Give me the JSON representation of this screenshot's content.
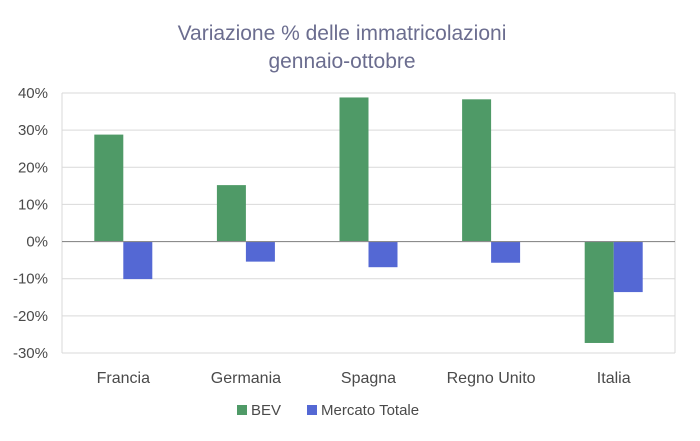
{
  "chart_data": {
    "type": "bar",
    "title": "Variazione % delle immatricolazioni",
    "subtitle": "gennaio-ottobre",
    "categories": [
      "Francia",
      "Germania",
      "Spagna",
      "Regno Unito",
      "Italia"
    ],
    "series": [
      {
        "name": "BEV",
        "color": "#4f9a67",
        "values": [
          28.8,
          15.2,
          38.8,
          38.3,
          -27.3
        ]
      },
      {
        "name": "Mercato Totale",
        "color": "#5468d4",
        "values": [
          -10.1,
          -5.4,
          -6.9,
          -5.7,
          -13.6
        ]
      }
    ],
    "ylim": [
      -30,
      40
    ],
    "yticks": [
      40,
      30,
      20,
      10,
      0,
      -10,
      -20,
      -30
    ],
    "ytick_labels": [
      "40%",
      "30%",
      "20%",
      "10%",
      "0%",
      "-10%",
      "-20%",
      "-30%"
    ],
    "grid": true,
    "legend": "bottom-center"
  }
}
